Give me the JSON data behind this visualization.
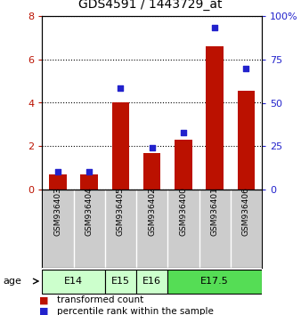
{
  "title": "GDS4591 / 1443729_at",
  "samples": [
    "GSM936403",
    "GSM936404",
    "GSM936405",
    "GSM936402",
    "GSM936400",
    "GSM936401",
    "GSM936406"
  ],
  "transformed_count": [
    0.7,
    0.7,
    4.0,
    1.7,
    2.3,
    6.6,
    4.55
  ],
  "percentile_rank": [
    10.5,
    10.5,
    58.5,
    24.0,
    33.0,
    93.5,
    70.0
  ],
  "age_groups": [
    {
      "label": "E14",
      "start": 0,
      "end": 1,
      "color": "#ccffcc"
    },
    {
      "label": "E15",
      "start": 2,
      "end": 2,
      "color": "#ccffcc"
    },
    {
      "label": "E16",
      "start": 3,
      "end": 3,
      "color": "#ccffcc"
    },
    {
      "label": "E17.5",
      "start": 4,
      "end": 6,
      "color": "#55dd55"
    }
  ],
  "bar_color": "#bb1100",
  "dot_color": "#2222cc",
  "left_ylim": [
    0,
    8
  ],
  "right_ylim": [
    0,
    100
  ],
  "left_yticks": [
    0,
    2,
    4,
    6,
    8
  ],
  "right_yticks": [
    0,
    25,
    50,
    75,
    100
  ],
  "right_yticklabels": [
    "0",
    "25",
    "50",
    "75",
    "100%"
  ],
  "sample_bg_color": "#cccccc",
  "legend_items": [
    {
      "color": "#bb1100",
      "label": "transformed count"
    },
    {
      "color": "#2222cc",
      "label": "percentile rank within the sample"
    }
  ]
}
